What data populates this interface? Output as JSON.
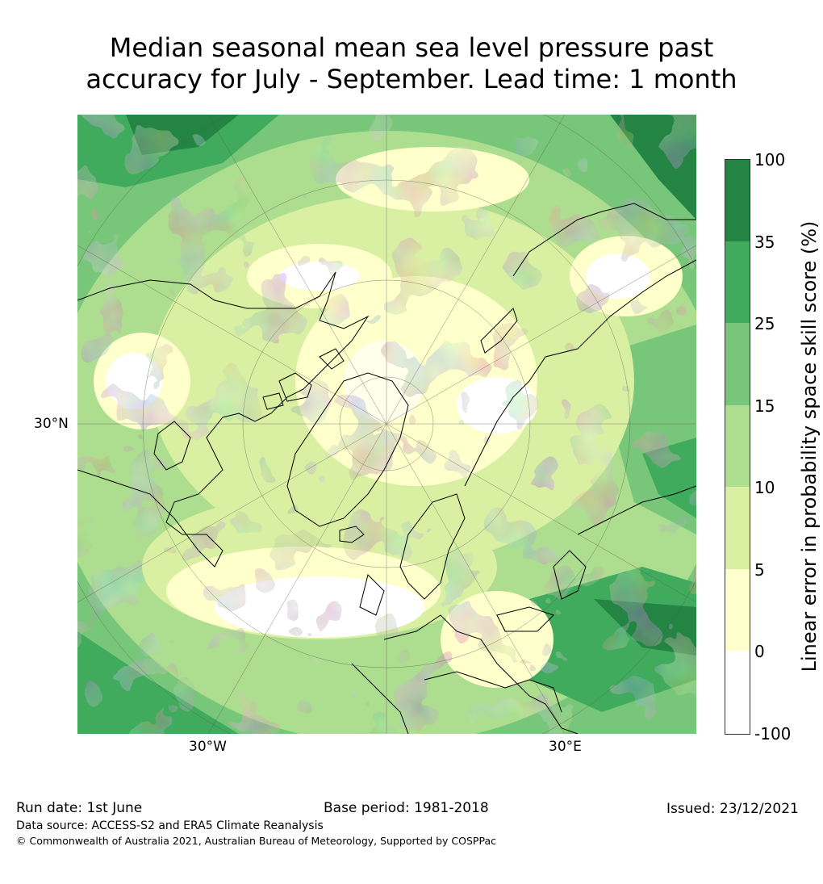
{
  "title": {
    "line1": "Median seasonal mean sea level pressure past",
    "line2": "accuracy for July - September. Lead time: 1 month"
  },
  "map": {
    "projection": "north-polar-stereographic",
    "labels": {
      "lat_30n": "30°N",
      "lon_30w": "30°W",
      "lon_30e": "30°E"
    },
    "layers": [
      "skill-score-fill",
      "coastlines",
      "graticule"
    ]
  },
  "colorbar": {
    "title": "Linear error in probability space skill score (%)",
    "ticks": [
      "100",
      "35",
      "25",
      "15",
      "10",
      "5",
      "0",
      "-100"
    ],
    "bins": [
      {
        "range": "35 to 100",
        "color": "#238443"
      },
      {
        "range": "25 to 35",
        "color": "#41ab5d"
      },
      {
        "range": "15 to 25",
        "color": "#78c679"
      },
      {
        "range": "10 to 15",
        "color": "#addd8e"
      },
      {
        "range": "5 to 10",
        "color": "#d9f0a3"
      },
      {
        "range": "0 to 5",
        "color": "#ffffcc"
      },
      {
        "range": "-100 to 0",
        "color": "#ffffff"
      }
    ]
  },
  "footer": {
    "run_date": "Run date: 1st June",
    "base_period": "Base period: 1981-2018",
    "issued": "Issued: 23/12/2021",
    "data_source": "Data source: ACCESS-S2 and ERA5 Climate Reanalysis",
    "copyright": "© Commonwealth of Australia 2021, Australian Bureau of Meteorology, Supported by COSPPac"
  }
}
